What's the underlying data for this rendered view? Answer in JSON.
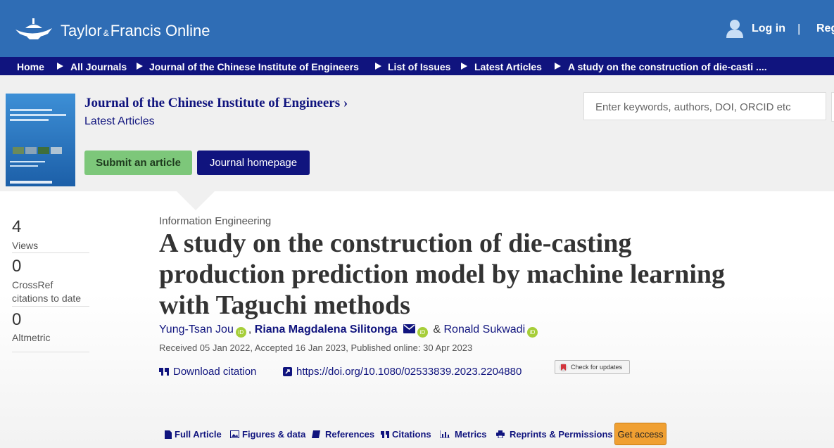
{
  "header": {
    "logo": {
      "brand_left": "Taylor",
      "amp": "&",
      "brand_right": "Francis Online"
    },
    "login": "Log in",
    "divider": "|",
    "register": "Register"
  },
  "breadcrumb": [
    "Home",
    "All Journals",
    "Journal of the Chinese Institute of Engineers",
    "List of Issues",
    "Latest Articles",
    "A study on the construction of die-casti ...."
  ],
  "journal": {
    "title": "Journal of the Chinese Institute of Engineers",
    "chevron": "›",
    "subtitle": "Latest Articles",
    "buttons": [
      "Submit an article",
      "Journal homepage"
    ],
    "search_placeholder": "Enter keywords, authors, DOI, ORCID etc"
  },
  "metrics": [
    {
      "value": "4",
      "label": "Views"
    },
    {
      "value": "0",
      "label": "CrossRef citations to date"
    },
    {
      "value": "0",
      "label": "Altmetric"
    }
  ],
  "article": {
    "section": "Information Engineering",
    "title_lines": [
      "A study on the construction of die-casting",
      "production prediction model by machine learning",
      "with Taguchi methods"
    ],
    "authors": [
      "Yung-Tsan Jou",
      "Riana Magdalena Silitonga",
      "Ronald Sukwadi"
    ],
    "separators": [
      ",",
      "&"
    ],
    "dates": "Received 05 Jan 2022, Accepted 16 Jan 2023, Published online: 30 Apr 2023",
    "download_citation": "Download citation",
    "doi": "https://doi.org/10.1080/02533839.2023.2204880",
    "check_updates": "Check for updates"
  },
  "tabs": [
    "Full Article",
    "Figures & data",
    "References",
    "Citations",
    "Metrics",
    "Reprints & Permissions"
  ],
  "get_access": "Get access"
}
